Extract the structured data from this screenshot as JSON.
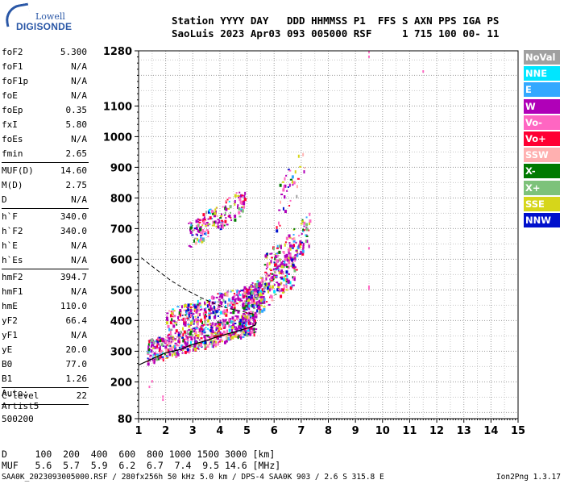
{
  "logo": {
    "line1": "Lowell",
    "line2": "DIGISONDE"
  },
  "header": {
    "row1": "Station YYYY DAY   DDD HHMMSS P1  FFS S AXN PPS IGA PS",
    "row2": "SaoLuis 2023 Apr03 093 005000 RSF     1 715 100 00- 11"
  },
  "params_group1": [
    {
      "k": "foF2",
      "v": "5.300"
    },
    {
      "k": "foF1",
      "v": "N/A"
    },
    {
      "k": "foF1p",
      "v": "N/A"
    },
    {
      "k": "foE",
      "v": "N/A"
    },
    {
      "k": "foEp",
      "v": "0.35"
    },
    {
      "k": "fxI",
      "v": "5.80"
    },
    {
      "k": "foEs",
      "v": "N/A"
    },
    {
      "k": "fmin",
      "v": "2.65"
    }
  ],
  "params_group2": [
    {
      "k": "MUF(D)",
      "v": "14.60"
    },
    {
      "k": "M(D)",
      "v": "2.75"
    },
    {
      "k": "D",
      "v": "N/A"
    }
  ],
  "params_group3": [
    {
      "k": "h`F",
      "v": "340.0"
    },
    {
      "k": "h`F2",
      "v": "340.0"
    },
    {
      "k": "h`E",
      "v": "N/A"
    },
    {
      "k": "h`Es",
      "v": "N/A"
    }
  ],
  "params_group4": [
    {
      "k": "hmF2",
      "v": "394.7"
    },
    {
      "k": "hmF1",
      "v": "N/A"
    },
    {
      "k": "hmE",
      "v": "110.0"
    },
    {
      "k": "yF2",
      "v": "66.4"
    },
    {
      "k": "yF1",
      "v": "N/A"
    },
    {
      "k": "yE",
      "v": "20.0"
    },
    {
      "k": "B0",
      "v": "77.0"
    },
    {
      "k": "B1",
      "v": "1.26"
    }
  ],
  "params_group5": [
    {
      "k": "C-level",
      "v": "22"
    }
  ],
  "auto": {
    "line1": "Auto:",
    "line2": "Artist5",
    "line3": "500200"
  },
  "legend": [
    {
      "label": "NoVal",
      "color": "#a0a0a0"
    },
    {
      "label": "NNE",
      "color": "#00e6ff"
    },
    {
      "label": "E",
      "color": "#33a8ff"
    },
    {
      "label": "W",
      "color": "#b000b8"
    },
    {
      "label": "Vo-",
      "color": "#ff66c2"
    },
    {
      "label": "Vo+",
      "color": "#ff0033"
    },
    {
      "label": "SSW",
      "color": "#ffb0b0"
    },
    {
      "label": "X-",
      "color": "#007a00"
    },
    {
      "label": "X+",
      "color": "#7dc27a"
    },
    {
      "label": "SSE",
      "color": "#d6d61a"
    },
    {
      "label": "NNW",
      "color": "#0010cc"
    }
  ],
  "bottom": {
    "dline": "D     100  200  400  600  800 1000 1500 3000 [km]",
    "mline": "MUF   5.6  5.7  5.9  6.2  6.7  7.4  9.5 14.6 [MHz]"
  },
  "footer": "SAA0K_2023093005000.RSF / 280fx256h 50 kHz 5.0 km / DPS-4 SAA0K 903 / 2.6 S 315.8 E",
  "version": "Ion2Png 1.3.17",
  "chart_data": {
    "type": "scatter",
    "x_ticks": [
      "1",
      "2",
      "3",
      "4",
      "5",
      "6",
      "7",
      "8",
      "9",
      "10",
      "11",
      "12",
      "13",
      "14",
      "15"
    ],
    "y_ticks": [
      {
        "v": 80,
        "label": "80"
      },
      {
        "v": 200,
        "label": "200"
      },
      {
        "v": 300,
        "label": "300"
      },
      {
        "v": 400,
        "label": "400"
      },
      {
        "v": 500,
        "label": "500"
      },
      {
        "v": 600,
        "label": "600"
      },
      {
        "v": 700,
        "label": "700"
      },
      {
        "v": 800,
        "label": "800"
      },
      {
        "v": 900,
        "label": "900"
      },
      {
        "v": 1000,
        "label": "1000"
      },
      {
        "v": 1100,
        "label": "1100"
      },
      {
        "v": 1280,
        "label": "1280"
      }
    ],
    "xlim": [
      1,
      15
    ],
    "ylim": [
      80,
      1280
    ],
    "grid": true,
    "trace_O_solid": [
      [
        1,
        255
      ],
      [
        1.5,
        275
      ],
      [
        2,
        295
      ],
      [
        2.5,
        305
      ],
      [
        3,
        322
      ],
      [
        3.5,
        335
      ],
      [
        4,
        350
      ],
      [
        4.5,
        362
      ],
      [
        5,
        375
      ],
      [
        5.3,
        385
      ],
      [
        5.35,
        395
      ]
    ],
    "trace_profile_dashed": [
      [
        1.1,
        605
      ],
      [
        1.6,
        570
      ],
      [
        2.2,
        530
      ],
      [
        2.8,
        498
      ],
      [
        3.3,
        475
      ],
      [
        3.8,
        455
      ],
      [
        4.3,
        440
      ],
      [
        4.8,
        430
      ],
      [
        5.3,
        420
      ]
    ],
    "echo_clusters": [
      {
        "x": [
          1.3,
          5.3
        ],
        "y": [
          300,
          440
        ],
        "n": 620
      },
      {
        "x": [
          2.0,
          5.6
        ],
        "y": [
          400,
          540
        ],
        "n": 380
      },
      {
        "x": [
          4.8,
          6.8
        ],
        "y": [
          440,
          640
        ],
        "n": 260
      },
      {
        "x": [
          5.6,
          7.3
        ],
        "y": [
          560,
          760
        ],
        "n": 160
      },
      {
        "x": [
          2.8,
          4.9
        ],
        "y": [
          680,
          840
        ],
        "n": 170
      },
      {
        "x": [
          6.0,
          7.1
        ],
        "y": [
          750,
          1000
        ],
        "n": 40
      }
    ],
    "isolated_points": [
      {
        "x": 9.5,
        "y": 1278
      },
      {
        "x": 9.5,
        "y": 1262
      },
      {
        "x": 11.5,
        "y": 1214
      },
      {
        "x": 9.5,
        "y": 637
      },
      {
        "x": 9.5,
        "y": 512
      },
      {
        "x": 9.5,
        "y": 505
      },
      {
        "x": 1.4,
        "y": 185
      },
      {
        "x": 1.5,
        "y": 203
      },
      {
        "x": 1.9,
        "y": 153
      },
      {
        "x": 1.9,
        "y": 143
      }
    ]
  }
}
